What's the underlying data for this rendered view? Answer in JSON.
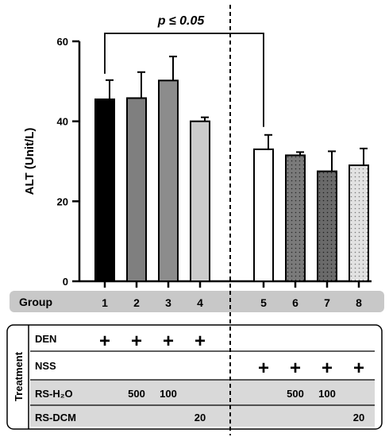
{
  "chart_data": {
    "type": "bar",
    "ylabel": "ALT (Unit/L)",
    "ylim": [
      0,
      60
    ],
    "yticks": [
      0,
      20,
      40,
      60
    ],
    "categories": [
      "1",
      "2",
      "3",
      "4",
      "5",
      "6",
      "7",
      "8"
    ],
    "values": [
      45.5,
      45.8,
      50.2,
      40.0,
      33.0,
      31.5,
      27.5,
      29.0
    ],
    "errors": [
      4.8,
      6.5,
      6.0,
      1.0,
      3.6,
      0.8,
      5.0,
      4.2
    ],
    "bar_colors": [
      "#000000",
      "#7f7f7f",
      "#8c8c8c",
      "#cccccc",
      "#ffffff",
      "#7f7f7f",
      "#6e6e6e",
      "#e0e0e0"
    ],
    "bar_patterns": [
      "solid",
      "solid",
      "solid",
      "solid",
      "solid",
      "dots",
      "dots",
      "dots"
    ],
    "annotation": {
      "text": "p ≤ 0.05",
      "from_category": "1",
      "to_category": "5"
    },
    "divider": "dashed vertical line between groups 4 and 5"
  },
  "group_label": "Group",
  "treatment_label": "Treatment",
  "treatment_rows": [
    {
      "label": "DEN",
      "values": [
        "+",
        "+",
        "+",
        "+",
        "",
        "",
        "",
        ""
      ]
    },
    {
      "label": "NSS",
      "values": [
        "",
        "",
        "",
        "",
        "+",
        "+",
        "+",
        "+"
      ]
    },
    {
      "label": "RS-H₂O",
      "values": [
        "",
        "500",
        "100",
        "",
        "",
        "500",
        "100",
        ""
      ]
    },
    {
      "label": "RS-DCM",
      "values": [
        "",
        "",
        "",
        "20",
        "",
        "",
        "",
        "20"
      ]
    }
  ],
  "colors": {
    "group_band": "#c8c8c8",
    "shaded_row": "#d9d9d9"
  }
}
